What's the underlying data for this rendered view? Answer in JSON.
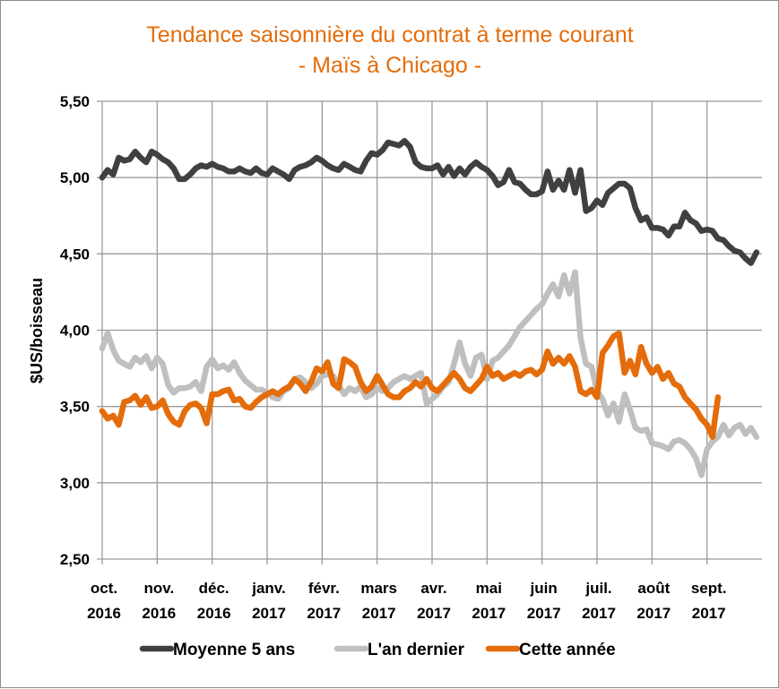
{
  "chart_data": {
    "type": "line",
    "title": "Tendance saisonnière du contrat à terme courant",
    "subtitle": "- Maïs à Chicago -",
    "xlabel": "",
    "ylabel": "$US/boisseau",
    "ylim": [
      2.5,
      5.5
    ],
    "yticks": [
      "2,50",
      "3,00",
      "3,50",
      "4,00",
      "4,50",
      "5,00",
      "5,50"
    ],
    "ytick_values": [
      2.5,
      3.0,
      3.5,
      4.0,
      4.5,
      5.0,
      5.5
    ],
    "categories": [
      {
        "month": "oct.",
        "year": "2016"
      },
      {
        "month": "nov.",
        "year": "2016"
      },
      {
        "month": "déc.",
        "year": "2016"
      },
      {
        "month": "janv.",
        "year": "2017"
      },
      {
        "month": "févr.",
        "year": "2017"
      },
      {
        "month": "mars",
        "year": "2017"
      },
      {
        "month": "avr.",
        "year": "2017"
      },
      {
        "month": "mai",
        "year": "2017"
      },
      {
        "month": "juin",
        "year": "2017"
      },
      {
        "month": "juil.",
        "year": "2017"
      },
      {
        "month": "août",
        "year": "2017"
      },
      {
        "month": "sept.",
        "year": "2017"
      }
    ],
    "x_unit": "months since start of oct. 2016",
    "grid": true,
    "legend_position": "bottom",
    "series": [
      {
        "name": "Moyenne 5 ans",
        "color": "#404040",
        "x": [
          0,
          0.1,
          0.2,
          0.3,
          0.4,
          0.5,
          0.6,
          0.7,
          0.8,
          0.9,
          1.0,
          1.1,
          1.2,
          1.3,
          1.4,
          1.5,
          1.6,
          1.7,
          1.8,
          1.9,
          2.0,
          2.1,
          2.2,
          2.3,
          2.4,
          2.5,
          2.6,
          2.7,
          2.8,
          2.9,
          3.0,
          3.1,
          3.2,
          3.3,
          3.4,
          3.5,
          3.6,
          3.7,
          3.8,
          3.9,
          4.0,
          4.1,
          4.2,
          4.3,
          4.4,
          4.5,
          4.6,
          4.7,
          4.8,
          4.9,
          5.0,
          5.1,
          5.2,
          5.3,
          5.4,
          5.5,
          5.6,
          5.7,
          5.8,
          5.9,
          6.0,
          6.1,
          6.2,
          6.3,
          6.4,
          6.5,
          6.6,
          6.7,
          6.8,
          6.9,
          7.0,
          7.1,
          7.2,
          7.3,
          7.4,
          7.5,
          7.6,
          7.7,
          7.8,
          7.9,
          8.0,
          8.1,
          8.2,
          8.3,
          8.4,
          8.5,
          8.6,
          8.7,
          8.8,
          8.9,
          9.0,
          9.1,
          9.2,
          9.3,
          9.4,
          9.5,
          9.6,
          9.7,
          9.8,
          9.9,
          10.0,
          10.1,
          10.2,
          10.3,
          10.4,
          10.5,
          10.6,
          10.7,
          10.8,
          10.9,
          11.0,
          11.1,
          11.2,
          11.3,
          11.4,
          11.5,
          11.6,
          11.7,
          11.8,
          11.9
        ],
        "values": [
          5.0,
          5.05,
          5.02,
          5.13,
          5.11,
          5.12,
          5.17,
          5.13,
          5.1,
          5.17,
          5.15,
          5.12,
          5.1,
          5.06,
          4.99,
          4.99,
          5.02,
          5.06,
          5.08,
          5.07,
          5.09,
          5.07,
          5.06,
          5.04,
          5.04,
          5.06,
          5.04,
          5.03,
          5.06,
          5.03,
          5.02,
          5.06,
          5.04,
          5.02,
          4.99,
          5.05,
          5.07,
          5.08,
          5.1,
          5.13,
          5.11,
          5.08,
          5.06,
          5.05,
          5.09,
          5.07,
          5.05,
          5.04,
          5.11,
          5.16,
          5.15,
          5.18,
          5.23,
          5.22,
          5.21,
          5.24,
          5.2,
          5.1,
          5.07,
          5.06,
          5.06,
          5.08,
          5.02,
          5.07,
          5.01,
          5.06,
          5.02,
          5.07,
          5.1,
          5.07,
          5.05,
          5.01,
          4.95,
          4.97,
          5.05,
          4.97,
          4.96,
          4.92,
          4.89,
          4.89,
          4.91,
          5.04,
          4.92,
          4.98,
          4.92,
          5.05,
          4.9,
          5.05,
          4.78,
          4.8,
          4.85,
          4.82,
          4.9,
          4.93,
          4.96,
          4.96,
          4.93,
          4.8,
          4.72,
          4.74,
          4.67,
          4.67,
          4.66,
          4.62,
          4.68,
          4.68,
          4.77,
          4.72,
          4.7,
          4.65,
          4.66,
          4.65,
          4.6,
          4.59,
          4.55,
          4.52,
          4.51,
          4.47,
          4.44,
          4.51
        ]
      },
      {
        "name": "L'an dernier",
        "color": "#bfbfbf",
        "x": [
          0,
          0.1,
          0.2,
          0.3,
          0.4,
          0.5,
          0.6,
          0.7,
          0.8,
          0.9,
          1.0,
          1.1,
          1.2,
          1.3,
          1.4,
          1.5,
          1.6,
          1.7,
          1.8,
          1.9,
          2.0,
          2.1,
          2.2,
          2.3,
          2.4,
          2.5,
          2.6,
          2.7,
          2.8,
          2.9,
          3.0,
          3.1,
          3.2,
          3.3,
          3.4,
          3.5,
          3.6,
          3.7,
          3.8,
          3.9,
          4.0,
          4.1,
          4.2,
          4.3,
          4.4,
          4.5,
          4.6,
          4.7,
          4.8,
          4.9,
          5.0,
          5.1,
          5.2,
          5.3,
          5.4,
          5.5,
          5.6,
          5.7,
          5.8,
          5.9,
          6.0,
          6.1,
          6.2,
          6.3,
          6.4,
          6.5,
          6.6,
          6.7,
          6.8,
          6.9,
          7.0,
          7.1,
          7.2,
          7.3,
          7.4,
          7.5,
          7.6,
          7.7,
          7.8,
          7.9,
          8.0,
          8.1,
          8.2,
          8.3,
          8.4,
          8.5,
          8.6,
          8.7,
          8.8,
          8.9,
          9.0,
          9.1,
          9.2,
          9.3,
          9.4,
          9.5,
          9.6,
          9.7,
          9.8,
          9.9,
          10.0,
          10.1,
          10.2,
          10.3,
          10.4,
          10.5,
          10.6,
          10.7,
          10.8,
          10.9,
          11.0,
          11.1,
          11.2,
          11.3,
          11.4,
          11.5,
          11.6,
          11.7,
          11.8,
          11.9
        ],
        "values": [
          3.88,
          3.98,
          3.87,
          3.8,
          3.78,
          3.76,
          3.82,
          3.79,
          3.83,
          3.75,
          3.82,
          3.78,
          3.64,
          3.59,
          3.62,
          3.62,
          3.63,
          3.66,
          3.6,
          3.76,
          3.81,
          3.75,
          3.77,
          3.74,
          3.79,
          3.72,
          3.67,
          3.64,
          3.61,
          3.61,
          3.59,
          3.56,
          3.55,
          3.6,
          3.62,
          3.68,
          3.69,
          3.66,
          3.62,
          3.65,
          3.7,
          3.71,
          3.7,
          3.64,
          3.58,
          3.62,
          3.6,
          3.63,
          3.56,
          3.58,
          3.62,
          3.6,
          3.62,
          3.66,
          3.68,
          3.7,
          3.68,
          3.7,
          3.72,
          3.52,
          3.55,
          3.58,
          3.63,
          3.66,
          3.78,
          3.92,
          3.78,
          3.7,
          3.82,
          3.84,
          3.68,
          3.8,
          3.82,
          3.86,
          3.9,
          3.96,
          4.02,
          4.06,
          4.1,
          4.14,
          4.17,
          4.24,
          4.3,
          4.22,
          4.36,
          4.24,
          4.38,
          3.95,
          3.78,
          3.76,
          3.6,
          3.55,
          3.44,
          3.52,
          3.4,
          3.58,
          3.48,
          3.36,
          3.34,
          3.35,
          3.26,
          3.25,
          3.24,
          3.22,
          3.27,
          3.28,
          3.26,
          3.22,
          3.16,
          3.05,
          3.22,
          3.27,
          3.3,
          3.38,
          3.31,
          3.36,
          3.38,
          3.32,
          3.36,
          3.3
        ]
      },
      {
        "name": "Cette année",
        "color": "#e46c0a",
        "x": [
          0,
          0.1,
          0.2,
          0.3,
          0.4,
          0.5,
          0.6,
          0.7,
          0.8,
          0.9,
          1.0,
          1.1,
          1.2,
          1.3,
          1.4,
          1.5,
          1.6,
          1.7,
          1.8,
          1.9,
          2.0,
          2.1,
          2.2,
          2.3,
          2.4,
          2.5,
          2.6,
          2.7,
          2.8,
          2.9,
          3.0,
          3.1,
          3.2,
          3.3,
          3.4,
          3.5,
          3.6,
          3.7,
          3.8,
          3.9,
          4.0,
          4.1,
          4.2,
          4.3,
          4.4,
          4.5,
          4.6,
          4.7,
          4.8,
          4.9,
          5.0,
          5.1,
          5.2,
          5.3,
          5.4,
          5.5,
          5.6,
          5.7,
          5.8,
          5.9,
          6.0,
          6.1,
          6.2,
          6.3,
          6.4,
          6.5,
          6.6,
          6.7,
          6.8,
          6.9,
          7.0,
          7.1,
          7.2,
          7.3,
          7.4,
          7.5,
          7.6,
          7.7,
          7.8,
          7.9,
          8.0,
          8.1,
          8.2,
          8.3,
          8.4,
          8.5,
          8.6,
          8.7,
          8.8,
          8.9,
          9.0,
          9.1,
          9.2,
          9.3,
          9.4,
          9.5,
          9.6,
          9.7,
          9.8,
          9.9,
          10.0,
          10.1,
          10.2,
          10.3,
          10.4,
          10.5,
          10.6,
          10.7,
          10.8,
          10.9,
          11.0,
          11.1,
          11.2
        ],
        "values": [
          3.47,
          3.42,
          3.44,
          3.38,
          3.53,
          3.54,
          3.57,
          3.51,
          3.56,
          3.49,
          3.5,
          3.54,
          3.45,
          3.4,
          3.38,
          3.47,
          3.51,
          3.52,
          3.49,
          3.39,
          3.58,
          3.58,
          3.6,
          3.61,
          3.54,
          3.55,
          3.5,
          3.49,
          3.53,
          3.56,
          3.58,
          3.6,
          3.58,
          3.61,
          3.63,
          3.68,
          3.65,
          3.6,
          3.66,
          3.75,
          3.73,
          3.79,
          3.65,
          3.62,
          3.81,
          3.79,
          3.76,
          3.66,
          3.6,
          3.63,
          3.7,
          3.64,
          3.58,
          3.56,
          3.56,
          3.6,
          3.62,
          3.66,
          3.63,
          3.68,
          3.62,
          3.6,
          3.64,
          3.68,
          3.72,
          3.68,
          3.62,
          3.6,
          3.64,
          3.68,
          3.76,
          3.7,
          3.72,
          3.68,
          3.7,
          3.72,
          3.7,
          3.73,
          3.74,
          3.71,
          3.74,
          3.86,
          3.78,
          3.82,
          3.78,
          3.83,
          3.76,
          3.6,
          3.58,
          3.61,
          3.56,
          3.85,
          3.9,
          3.96,
          3.98,
          3.72,
          3.8,
          3.71,
          3.89,
          3.78,
          3.72,
          3.76,
          3.68,
          3.72,
          3.65,
          3.63,
          3.56,
          3.52,
          3.48,
          3.42,
          3.38,
          3.3,
          3.56
        ]
      }
    ]
  }
}
